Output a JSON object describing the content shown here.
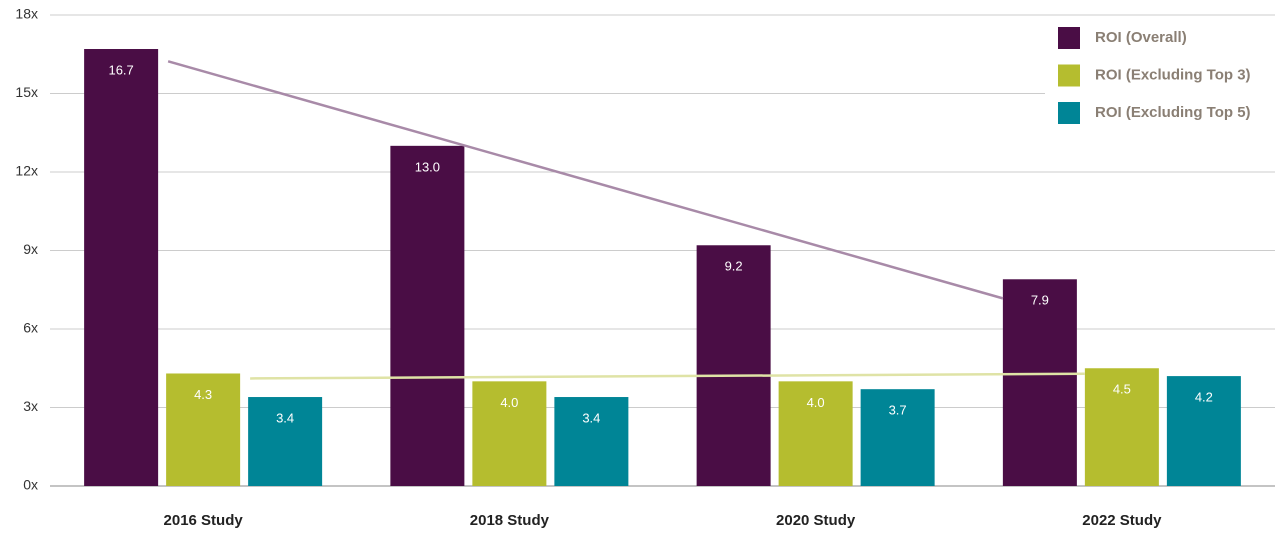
{
  "chart_data": {
    "type": "bar",
    "categories": [
      "2016 Study",
      "2018 Study",
      "2020 Study",
      "2022 Study"
    ],
    "series": [
      {
        "name": "ROI (Overall)",
        "color": "#4a0d45",
        "values": [
          16.7,
          13.0,
          9.2,
          7.9
        ],
        "value_labels": [
          "16.7",
          "13.0",
          "9.2",
          "7.9"
        ],
        "trendline": true,
        "trendline_color": "#a88aa8"
      },
      {
        "name": "ROI (Excluding Top 3)",
        "color": "#b5bd2f",
        "values": [
          4.3,
          4.0,
          4.0,
          4.5
        ],
        "value_labels": [
          "4.3",
          "4.0",
          "4.0",
          "4.5"
        ],
        "trendline": true,
        "trendline_color": "#dfe3a6"
      },
      {
        "name": "ROI (Excluding Top 5)",
        "color": "#008596",
        "values": [
          3.4,
          3.4,
          3.7,
          4.2
        ],
        "value_labels": [
          "3.4",
          "3.4",
          "3.7",
          "4.2"
        ]
      }
    ],
    "ylim": [
      0,
      18
    ],
    "yticks": [
      {
        "value": 0,
        "label": "0x"
      },
      {
        "value": 3,
        "label": "3x"
      },
      {
        "value": 6,
        "label": "6x"
      },
      {
        "value": 9,
        "label": "9x"
      },
      {
        "value": 12,
        "label": "12x"
      },
      {
        "value": 15,
        "label": "15x"
      },
      {
        "value": 18,
        "label": "18x"
      }
    ],
    "grid": true,
    "legend": "top-right"
  }
}
